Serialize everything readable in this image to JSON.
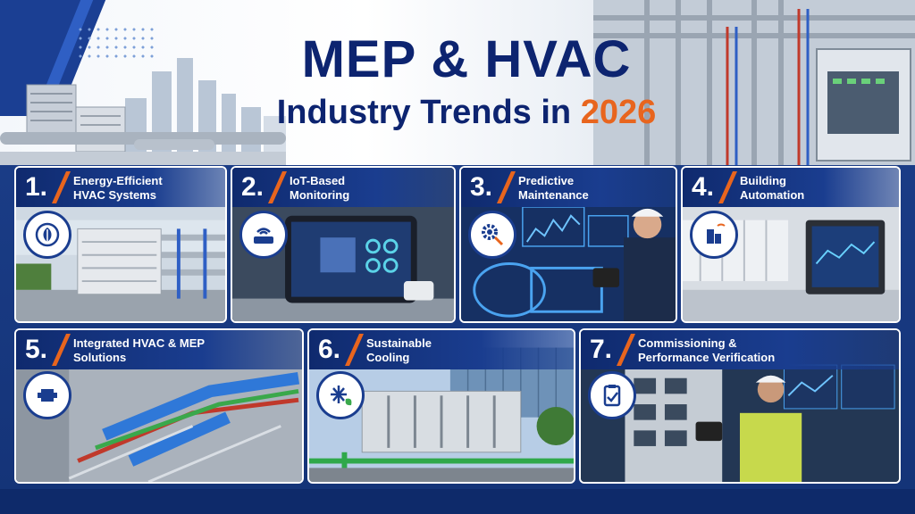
{
  "header": {
    "title_line1": "MEP & HVAC",
    "title_line2_prefix": "Industry Trends in",
    "title_year": "2026"
  },
  "colors": {
    "navy": "#0d2470",
    "accent_orange": "#e8651e",
    "band_blue": "#1a3d8f"
  },
  "cards": [
    {
      "number": "1.",
      "title": "Energy-Efficient HVAC Systems",
      "icon": "leaf-recycle-icon"
    },
    {
      "number": "2.",
      "title": "IoT-Based Monitoring",
      "icon": "wifi-router-icon"
    },
    {
      "number": "3.",
      "title": "Predictive Maintenance",
      "icon": "gear-search-icon"
    },
    {
      "number": "4.",
      "title": "Building Automation",
      "icon": "smart-building-icon"
    },
    {
      "number": "5.",
      "title": "Integrated HVAC & MEP Solutions",
      "icon": "integration-puzzle-icon"
    },
    {
      "number": "6.",
      "title": "Sustainable Cooling",
      "icon": "snowflake-leaf-icon"
    },
    {
      "number": "7.",
      "title": "Commissioning & Performance Verification",
      "icon": "clipboard-check-icon"
    }
  ]
}
